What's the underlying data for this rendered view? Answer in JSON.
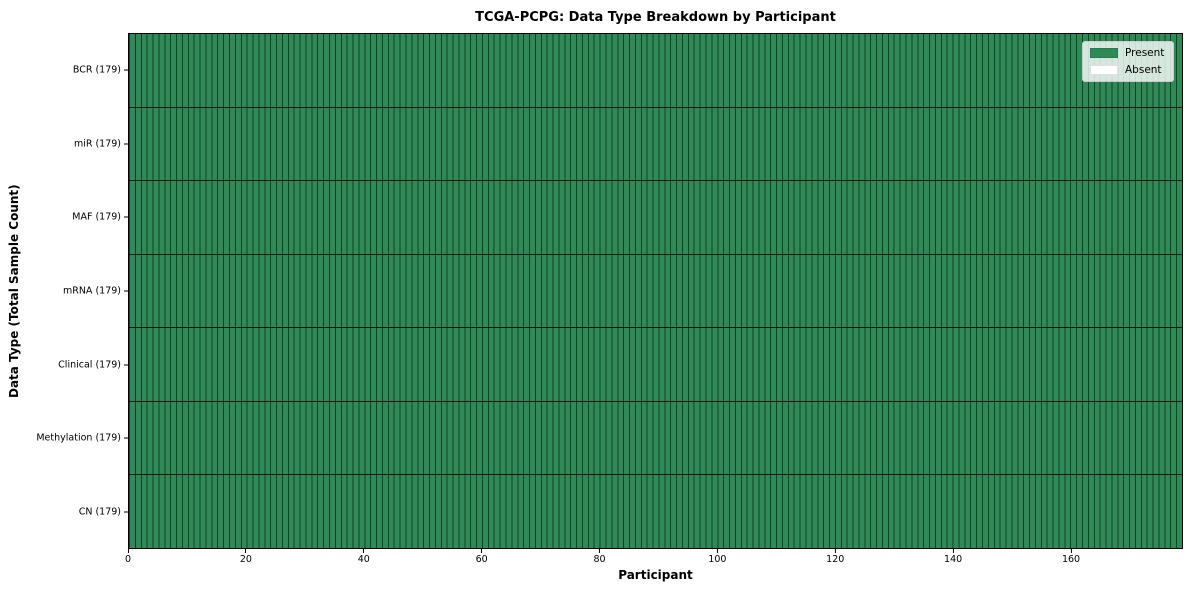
{
  "title": "TCGA-PCPG: Data Type Breakdown by Participant",
  "axes": {
    "x_label": "Participant",
    "y_label": "Data Type (Total Sample Count)",
    "x_ticks": [
      0,
      20,
      40,
      60,
      80,
      100,
      120,
      140,
      160
    ],
    "x_max": 179
  },
  "legend": {
    "items": [
      {
        "label": "Present",
        "color": "#2e8b57"
      },
      {
        "label": "Absent",
        "color": "#ffffff"
      }
    ]
  },
  "chart_data": {
    "type": "heatmap",
    "title": "TCGA-PCPG: Data Type Breakdown by Participant",
    "xlabel": "Participant",
    "ylabel": "Data Type (Total Sample Count)",
    "x_range": [
      0,
      179
    ],
    "x_tick_labels": [
      0,
      20,
      40,
      60,
      80,
      100,
      120,
      140,
      160
    ],
    "n_participants": 179,
    "legend_position": "upper right",
    "cell_colors": {
      "present": "#2e8b57",
      "absent": "#ffffff"
    },
    "cell_edge_color": "rgba(0,0,0,0.55)",
    "rows": [
      {
        "label": "BCR (179)",
        "data_type": "BCR",
        "total_samples": 179,
        "present_count": 179,
        "absent_count": 0,
        "all_present": true
      },
      {
        "label": "miR (179)",
        "data_type": "miR",
        "total_samples": 179,
        "present_count": 179,
        "absent_count": 0,
        "all_present": true
      },
      {
        "label": "MAF (179)",
        "data_type": "MAF",
        "total_samples": 179,
        "present_count": 179,
        "absent_count": 0,
        "all_present": true
      },
      {
        "label": "mRNA (179)",
        "data_type": "mRNA",
        "total_samples": 179,
        "present_count": 179,
        "absent_count": 0,
        "all_present": true
      },
      {
        "label": "Clinical (179)",
        "data_type": "Clinical",
        "total_samples": 179,
        "present_count": 179,
        "absent_count": 0,
        "all_present": true
      },
      {
        "label": "Methylation (179)",
        "data_type": "Methylation",
        "total_samples": 179,
        "present_count": 179,
        "absent_count": 0,
        "all_present": true
      },
      {
        "label": "CN (179)",
        "data_type": "CN",
        "total_samples": 179,
        "present_count": 179,
        "absent_count": 0,
        "all_present": true
      }
    ]
  }
}
